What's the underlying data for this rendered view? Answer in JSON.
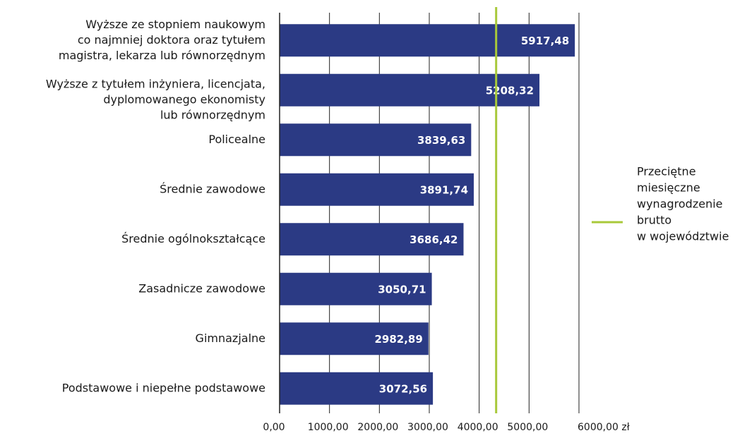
{
  "chart_data": {
    "type": "barh",
    "categories": [
      [
        "Wyższe ze stopniem naukowym",
        "co najmniej doktora oraz tytułem",
        "magistra, lekarza lub równorzędnym"
      ],
      [
        "Wyższe z tytułem inżyniera, licencjata,",
        "dyplomowanego ekonomisty",
        "lub równorzędnym"
      ],
      [
        "Policealne"
      ],
      [
        "Średnie zawodowe"
      ],
      [
        "Średnie ogólnokształcące"
      ],
      [
        "Zasadnicze zawodowe"
      ],
      [
        "Gimnazjalne"
      ],
      [
        "Podstawowe i niepełne podstawowe"
      ]
    ],
    "values": [
      5917.48,
      5208.32,
      3839.63,
      3891.74,
      3686.42,
      3050.71,
      2982.89,
      3072.56
    ],
    "value_labels": [
      "5917,48",
      "5208,32",
      "3839,63",
      "3891,74",
      "3686,42",
      "3050,71",
      "2982,89",
      "3072,56"
    ],
    "color": "#2b3a84",
    "xlim": [
      0,
      6000
    ],
    "xticks": [
      {
        "value": 0,
        "label": "0,00"
      },
      {
        "value": 1000,
        "label": "1000,00"
      },
      {
        "value": 2000,
        "label": "2000,00"
      },
      {
        "value": 3000,
        "label": "3000,00"
      },
      {
        "value": 4000,
        "label": "4000,00"
      },
      {
        "value": 5000,
        "label": "5000,00"
      },
      {
        "value": 6000,
        "label": "6000,00 zł"
      }
    ],
    "grid": true,
    "reference_line": {
      "name_lines": [
        "Przeciętne",
        "miesięczne",
        "wynagrodzenie",
        "brutto",
        "w województwie"
      ],
      "value": 4340,
      "color": "#a8c93a"
    }
  }
}
